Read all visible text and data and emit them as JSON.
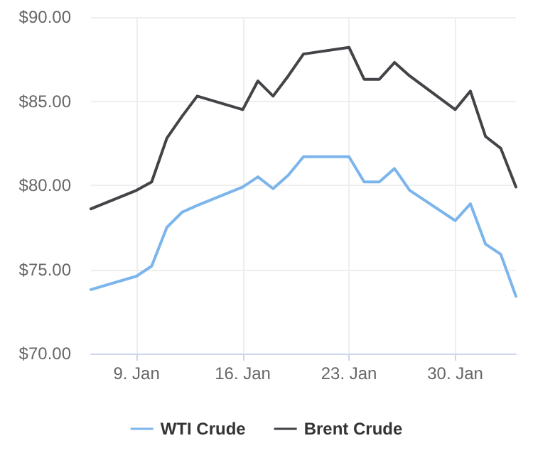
{
  "chart_data": {
    "type": "line",
    "x": [
      "--01-06",
      "--01-09",
      "--01-10",
      "--01-11",
      "--01-12",
      "--01-13",
      "--01-16",
      "--01-17",
      "--01-18",
      "--01-19",
      "--01-20",
      "--01-23",
      "--01-24",
      "--01-25",
      "--01-26",
      "--01-27",
      "--01-30",
      "--01-31",
      "--02-01",
      "--02-02",
      "--02-03"
    ],
    "series": [
      {
        "name": "WTI Crude",
        "color": "#7cb5ec",
        "values": [
          73.8,
          74.6,
          75.2,
          77.5,
          78.4,
          78.8,
          79.9,
          80.5,
          79.8,
          80.6,
          81.7,
          81.7,
          80.2,
          80.2,
          81.0,
          79.7,
          77.9,
          78.9,
          76.5,
          75.9,
          73.4
        ]
      },
      {
        "name": "Brent Crude",
        "color": "#434348",
        "values": [
          78.6,
          79.7,
          80.2,
          82.8,
          84.1,
          85.3,
          84.5,
          86.2,
          85.3,
          86.5,
          87.8,
          88.2,
          86.3,
          86.3,
          87.3,
          86.5,
          84.5,
          85.6,
          82.9,
          82.2,
          79.9
        ]
      }
    ],
    "xlim": [
      "--01-06",
      "--02-03"
    ],
    "xticks": [
      {
        "value": "--01-09",
        "label": "9. Jan"
      },
      {
        "value": "--01-16",
        "label": "16. Jan"
      },
      {
        "value": "--01-23",
        "label": "23. Jan"
      },
      {
        "value": "--01-30",
        "label": "30. Jan"
      }
    ],
    "ylim": [
      70,
      90
    ],
    "yticks": [
      {
        "value": 70,
        "label": "$70.00"
      },
      {
        "value": 75,
        "label": "$75.00"
      },
      {
        "value": 80,
        "label": "$80.00"
      },
      {
        "value": 85,
        "label": "$85.00"
      },
      {
        "value": 90,
        "label": "$90.00"
      }
    ],
    "grid": true,
    "legend": "bottom",
    "marker": "none",
    "line_style": "solid"
  }
}
